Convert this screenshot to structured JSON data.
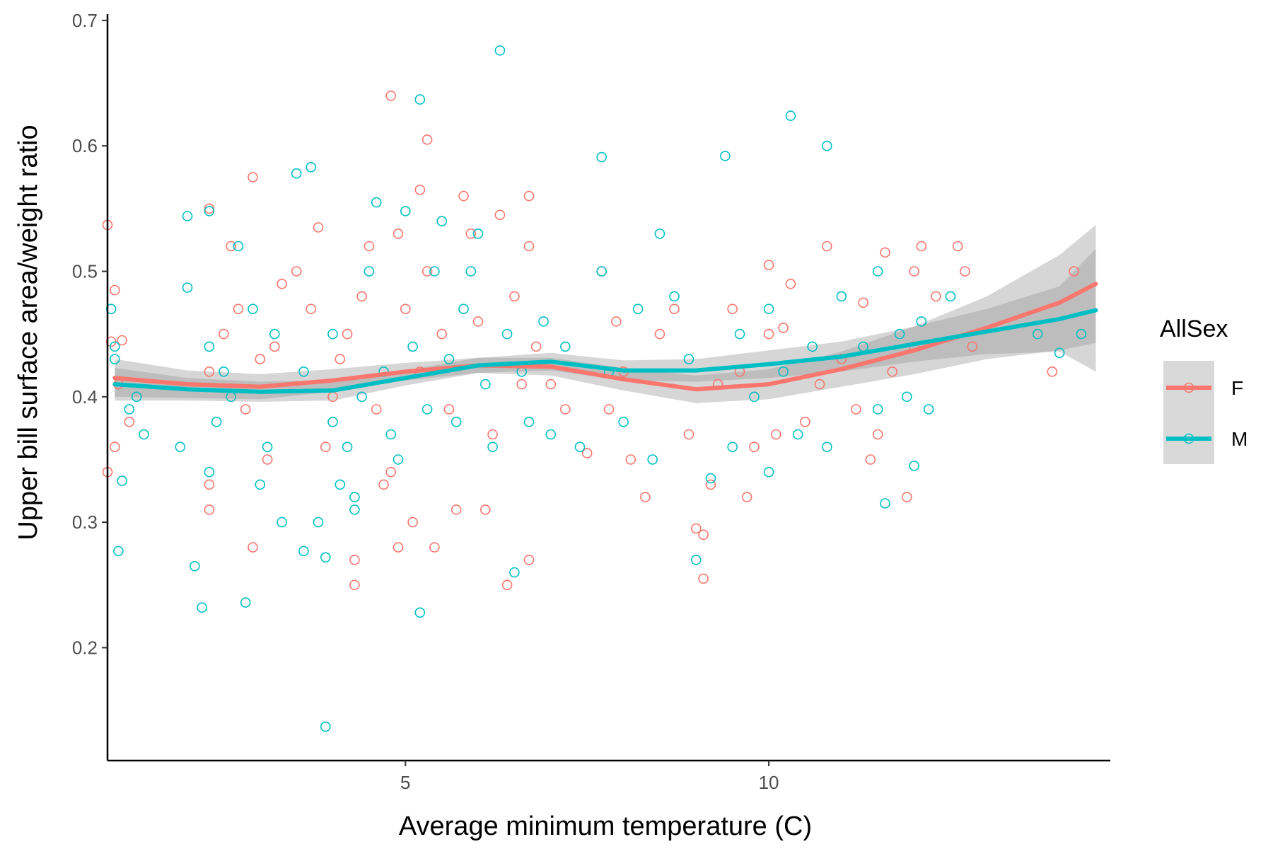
{
  "chart_data": {
    "type": "scatter",
    "xlabel": "Average minimum temperature (C)",
    "ylabel": "Upper bill surface area/weight ratio",
    "xlim": [
      0.9,
      14.7
    ],
    "ylim": [
      0.11,
      0.705
    ],
    "x_ticks": [
      5,
      10
    ],
    "y_ticks": [
      0.2,
      0.3,
      0.4,
      0.5,
      0.6,
      0.7
    ],
    "x_tick_labels": [
      "5",
      "10"
    ],
    "y_tick_labels": [
      "0.2",
      "0.3",
      "0.4",
      "0.5",
      "0.6",
      "0.7"
    ],
    "grid": false,
    "legend": {
      "title": "AllSex",
      "placement": "right",
      "entries": [
        {
          "label": "F",
          "color": "#F8766D"
        },
        {
          "label": "M",
          "color": "#00BFC4"
        }
      ]
    },
    "series": [
      {
        "name": "F",
        "color": "#F8766D",
        "points": [
          [
            0.9,
            0.537
          ],
          [
            0.9,
            0.34
          ],
          [
            0.95,
            0.444
          ],
          [
            1.0,
            0.485
          ],
          [
            1.0,
            0.36
          ],
          [
            1.05,
            0.41
          ],
          [
            1.1,
            0.445
          ],
          [
            1.2,
            0.38
          ],
          [
            2.3,
            0.55
          ],
          [
            2.3,
            0.42
          ],
          [
            2.3,
            0.31
          ],
          [
            2.3,
            0.33
          ],
          [
            2.5,
            0.45
          ],
          [
            2.6,
            0.52
          ],
          [
            2.7,
            0.47
          ],
          [
            2.8,
            0.39
          ],
          [
            2.9,
            0.575
          ],
          [
            2.9,
            0.28
          ],
          [
            3.0,
            0.43
          ],
          [
            3.1,
            0.35
          ],
          [
            3.2,
            0.44
          ],
          [
            3.3,
            0.49
          ],
          [
            3.5,
            0.5
          ],
          [
            3.7,
            0.47
          ],
          [
            3.8,
            0.535
          ],
          [
            3.9,
            0.36
          ],
          [
            4.0,
            0.4
          ],
          [
            4.1,
            0.43
          ],
          [
            4.2,
            0.45
          ],
          [
            4.3,
            0.25
          ],
          [
            4.3,
            0.27
          ],
          [
            4.4,
            0.48
          ],
          [
            4.5,
            0.52
          ],
          [
            4.6,
            0.39
          ],
          [
            4.7,
            0.33
          ],
          [
            4.8,
            0.34
          ],
          [
            4.8,
            0.64
          ],
          [
            4.9,
            0.28
          ],
          [
            4.9,
            0.53
          ],
          [
            5.0,
            0.47
          ],
          [
            5.1,
            0.3
          ],
          [
            5.2,
            0.565
          ],
          [
            5.2,
            0.42
          ],
          [
            5.3,
            0.5
          ],
          [
            5.3,
            0.605
          ],
          [
            5.4,
            0.28
          ],
          [
            5.5,
            0.45
          ],
          [
            5.6,
            0.39
          ],
          [
            5.7,
            0.31
          ],
          [
            5.8,
            0.56
          ],
          [
            5.9,
            0.53
          ],
          [
            6.0,
            0.46
          ],
          [
            6.1,
            0.31
          ],
          [
            6.2,
            0.37
          ],
          [
            6.3,
            0.545
          ],
          [
            6.4,
            0.25
          ],
          [
            6.5,
            0.48
          ],
          [
            6.6,
            0.41
          ],
          [
            6.7,
            0.56
          ],
          [
            6.7,
            0.52
          ],
          [
            6.7,
            0.27
          ],
          [
            6.8,
            0.44
          ],
          [
            7.0,
            0.41
          ],
          [
            7.2,
            0.39
          ],
          [
            7.5,
            0.355
          ],
          [
            7.7,
            0.5
          ],
          [
            7.8,
            0.39
          ],
          [
            7.9,
            0.46
          ],
          [
            8.0,
            0.42
          ],
          [
            8.1,
            0.35
          ],
          [
            8.3,
            0.32
          ],
          [
            8.5,
            0.45
          ],
          [
            8.7,
            0.47
          ],
          [
            8.9,
            0.37
          ],
          [
            9.0,
            0.295
          ],
          [
            9.1,
            0.29
          ],
          [
            9.1,
            0.255
          ],
          [
            9.2,
            0.33
          ],
          [
            9.3,
            0.41
          ],
          [
            9.5,
            0.47
          ],
          [
            9.6,
            0.42
          ],
          [
            9.7,
            0.32
          ],
          [
            9.8,
            0.36
          ],
          [
            10.0,
            0.505
          ],
          [
            10.0,
            0.45
          ],
          [
            10.1,
            0.37
          ],
          [
            10.2,
            0.455
          ],
          [
            10.3,
            0.49
          ],
          [
            10.5,
            0.38
          ],
          [
            10.7,
            0.41
          ],
          [
            10.8,
            0.52
          ],
          [
            11.0,
            0.43
          ],
          [
            11.2,
            0.39
          ],
          [
            11.3,
            0.475
          ],
          [
            11.4,
            0.35
          ],
          [
            11.5,
            0.37
          ],
          [
            11.6,
            0.515
          ],
          [
            11.7,
            0.42
          ],
          [
            11.9,
            0.32
          ],
          [
            12.0,
            0.5
          ],
          [
            12.0,
            0.44
          ],
          [
            12.1,
            0.52
          ],
          [
            12.3,
            0.48
          ],
          [
            12.6,
            0.52
          ],
          [
            12.7,
            0.5
          ],
          [
            12.8,
            0.44
          ],
          [
            13.9,
            0.42
          ],
          [
            14.2,
            0.5
          ]
        ]
      },
      {
        "name": "M",
        "color": "#00BFC4",
        "points": [
          [
            0.95,
            0.47
          ],
          [
            1.0,
            0.43
          ],
          [
            1.0,
            0.44
          ],
          [
            1.05,
            0.277
          ],
          [
            1.1,
            0.333
          ],
          [
            1.2,
            0.39
          ],
          [
            1.3,
            0.4
          ],
          [
            1.4,
            0.37
          ],
          [
            1.9,
            0.36
          ],
          [
            2.0,
            0.544
          ],
          [
            2.0,
            0.487
          ],
          [
            2.1,
            0.265
          ],
          [
            2.2,
            0.232
          ],
          [
            2.3,
            0.548
          ],
          [
            2.3,
            0.44
          ],
          [
            2.3,
            0.34
          ],
          [
            2.4,
            0.38
          ],
          [
            2.5,
            0.42
          ],
          [
            2.6,
            0.4
          ],
          [
            2.7,
            0.52
          ],
          [
            2.8,
            0.236
          ],
          [
            2.9,
            0.47
          ],
          [
            3.0,
            0.33
          ],
          [
            3.1,
            0.36
          ],
          [
            3.2,
            0.45
          ],
          [
            3.3,
            0.3
          ],
          [
            3.5,
            0.578
          ],
          [
            3.6,
            0.277
          ],
          [
            3.6,
            0.42
          ],
          [
            3.7,
            0.583
          ],
          [
            3.8,
            0.3
          ],
          [
            3.9,
            0.137
          ],
          [
            3.9,
            0.272
          ],
          [
            4.0,
            0.38
          ],
          [
            4.0,
            0.45
          ],
          [
            4.1,
            0.33
          ],
          [
            4.2,
            0.36
          ],
          [
            4.3,
            0.31
          ],
          [
            4.3,
            0.32
          ],
          [
            4.4,
            0.4
          ],
          [
            4.5,
            0.5
          ],
          [
            4.6,
            0.555
          ],
          [
            4.7,
            0.42
          ],
          [
            4.8,
            0.37
          ],
          [
            4.9,
            0.35
          ],
          [
            5.0,
            0.548
          ],
          [
            5.1,
            0.44
          ],
          [
            5.2,
            0.637
          ],
          [
            5.2,
            0.228
          ],
          [
            5.3,
            0.39
          ],
          [
            5.4,
            0.5
          ],
          [
            5.5,
            0.54
          ],
          [
            5.6,
            0.43
          ],
          [
            5.7,
            0.38
          ],
          [
            5.8,
            0.47
          ],
          [
            5.9,
            0.5
          ],
          [
            6.0,
            0.53
          ],
          [
            6.1,
            0.41
          ],
          [
            6.2,
            0.36
          ],
          [
            6.3,
            0.676
          ],
          [
            6.4,
            0.45
          ],
          [
            6.5,
            0.26
          ],
          [
            6.6,
            0.42
          ],
          [
            6.7,
            0.38
          ],
          [
            6.9,
            0.46
          ],
          [
            7.0,
            0.37
          ],
          [
            7.2,
            0.44
          ],
          [
            7.4,
            0.36
          ],
          [
            7.7,
            0.591
          ],
          [
            7.7,
            0.5
          ],
          [
            7.8,
            0.42
          ],
          [
            8.0,
            0.38
          ],
          [
            8.2,
            0.47
          ],
          [
            8.4,
            0.35
          ],
          [
            8.5,
            0.53
          ],
          [
            8.7,
            0.48
          ],
          [
            8.9,
            0.43
          ],
          [
            9.0,
            0.27
          ],
          [
            9.2,
            0.335
          ],
          [
            9.4,
            0.592
          ],
          [
            9.5,
            0.36
          ],
          [
            9.6,
            0.45
          ],
          [
            9.8,
            0.4
          ],
          [
            10.0,
            0.47
          ],
          [
            10.0,
            0.34
          ],
          [
            10.2,
            0.42
          ],
          [
            10.3,
            0.624
          ],
          [
            10.4,
            0.37
          ],
          [
            10.6,
            0.44
          ],
          [
            10.8,
            0.6
          ],
          [
            10.8,
            0.36
          ],
          [
            11.0,
            0.48
          ],
          [
            11.3,
            0.44
          ],
          [
            11.5,
            0.39
          ],
          [
            11.5,
            0.5
          ],
          [
            11.6,
            0.315
          ],
          [
            11.8,
            0.45
          ],
          [
            11.9,
            0.4
          ],
          [
            12.0,
            0.345
          ],
          [
            12.1,
            0.46
          ],
          [
            12.2,
            0.39
          ],
          [
            12.5,
            0.48
          ],
          [
            13.7,
            0.45
          ],
          [
            14.0,
            0.435
          ],
          [
            14.3,
            0.45
          ]
        ]
      }
    ],
    "smooth": [
      {
        "name": "F",
        "color": "#F8766D",
        "x": [
          1.0,
          2.0,
          3.0,
          4.0,
          5.0,
          6.0,
          7.0,
          8.0,
          9.0,
          10.0,
          11.0,
          12.0,
          13.0,
          14.0,
          14.5
        ],
        "y": [
          0.415,
          0.41,
          0.408,
          0.413,
          0.42,
          0.425,
          0.424,
          0.414,
          0.406,
          0.41,
          0.422,
          0.437,
          0.455,
          0.475,
          0.49
        ],
        "lower": [
          0.4,
          0.399,
          0.398,
          0.404,
          0.413,
          0.419,
          0.417,
          0.405,
          0.395,
          0.398,
          0.408,
          0.418,
          0.43,
          0.437,
          0.443
        ],
        "upper": [
          0.43,
          0.421,
          0.418,
          0.422,
          0.427,
          0.431,
          0.431,
          0.423,
          0.417,
          0.422,
          0.436,
          0.456,
          0.48,
          0.513,
          0.537
        ]
      },
      {
        "name": "M",
        "color": "#00BFC4",
        "x": [
          1.0,
          2.0,
          3.0,
          4.0,
          5.0,
          6.0,
          7.0,
          8.0,
          9.0,
          10.0,
          11.0,
          12.0,
          13.0,
          14.0,
          14.5
        ],
        "y": [
          0.41,
          0.406,
          0.404,
          0.405,
          0.415,
          0.425,
          0.428,
          0.421,
          0.421,
          0.426,
          0.432,
          0.442,
          0.452,
          0.462,
          0.469
        ],
        "lower": [
          0.397,
          0.397,
          0.396,
          0.397,
          0.409,
          0.419,
          0.421,
          0.413,
          0.412,
          0.415,
          0.42,
          0.428,
          0.434,
          0.436,
          0.42
        ],
        "upper": [
          0.423,
          0.415,
          0.412,
          0.413,
          0.421,
          0.431,
          0.435,
          0.429,
          0.43,
          0.437,
          0.444,
          0.456,
          0.47,
          0.488,
          0.518
        ]
      }
    ]
  }
}
